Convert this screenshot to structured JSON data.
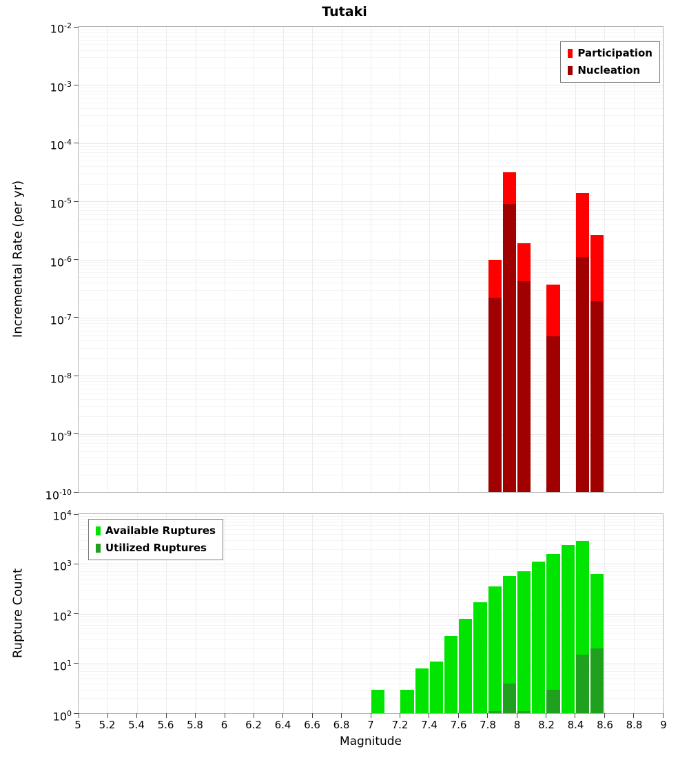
{
  "title": "Tutaki",
  "xlabel": "Magnitude",
  "x_tick_labels": [
    "5",
    "5.2",
    "5.4",
    "5.6",
    "5.8",
    "6",
    "6.2",
    "6.4",
    "6.6",
    "6.8",
    "7",
    "7.2",
    "7.4",
    "7.6",
    "7.8",
    "8",
    "8.2",
    "8.4",
    "8.6",
    "8.8",
    "9"
  ],
  "top_panel": {
    "ylabel": "Incremental Rate (per yr)",
    "y_tick_exponents": [
      -2,
      -3,
      -4,
      -5,
      -6,
      -7,
      -8,
      -9,
      -10
    ],
    "legend": [
      {
        "label": "Participation",
        "color": "#ff0000"
      },
      {
        "label": "Nucleation",
        "color": "#a00000"
      }
    ]
  },
  "bottom_panel": {
    "ylabel": "Rupture Count",
    "y_tick_exponents": [
      4,
      3,
      2,
      1,
      0
    ],
    "legend": [
      {
        "label": "Available Ruptures",
        "color": "#00e400"
      },
      {
        "label": "Utilized Ruptures",
        "color": "#1fa11f"
      }
    ]
  },
  "chart_data": [
    {
      "type": "bar",
      "panel": "incremental-rate",
      "title": "Tutaki",
      "xlabel": "Magnitude",
      "ylabel": "Incremental Rate (per yr)",
      "x_range": [
        5,
        9
      ],
      "y_range": [
        1e-10,
        0.01
      ],
      "y_scale": "log",
      "bar_width": 0.1,
      "grid": true,
      "legend_position": "top-right",
      "series": [
        {
          "name": "Participation",
          "color": "#ff0000",
          "x": [
            7.85,
            7.95,
            8.05,
            8.25,
            8.45,
            8.55
          ],
          "values": [
            1e-06,
            3.2e-05,
            1.9e-06,
            3.7e-07,
            1.4e-05,
            2.6e-06
          ]
        },
        {
          "name": "Nucleation",
          "color": "#a00000",
          "x": [
            7.85,
            7.95,
            8.05,
            8.25,
            8.45,
            8.55
          ],
          "values": [
            2.2e-07,
            9e-06,
            4.2e-07,
            4.8e-08,
            1.1e-06,
            1.9e-07
          ]
        }
      ]
    },
    {
      "type": "bar",
      "panel": "rupture-count",
      "ylabel": "Rupture Count",
      "xlabel": "Magnitude",
      "x_range": [
        5,
        9
      ],
      "y_range": [
        1,
        10000
      ],
      "y_scale": "log",
      "bar_width": 0.1,
      "grid": true,
      "legend_position": "top-left",
      "series": [
        {
          "name": "Available Ruptures",
          "color": "#00e400",
          "x": [
            7.05,
            7.25,
            7.35,
            7.45,
            7.55,
            7.65,
            7.75,
            7.85,
            7.95,
            8.05,
            8.15,
            8.25,
            8.35,
            8.45,
            8.55
          ],
          "values": [
            3,
            3,
            8,
            11,
            35,
            80,
            170,
            350,
            560,
            720,
            1100,
            1600,
            2400,
            2900,
            620
          ]
        },
        {
          "name": "Utilized Ruptures",
          "color": "#1fa11f",
          "x": [
            7.85,
            7.95,
            8.05,
            8.25,
            8.45,
            8.55
          ],
          "values": [
            1,
            4,
            1,
            3,
            15,
            20
          ]
        }
      ]
    }
  ]
}
